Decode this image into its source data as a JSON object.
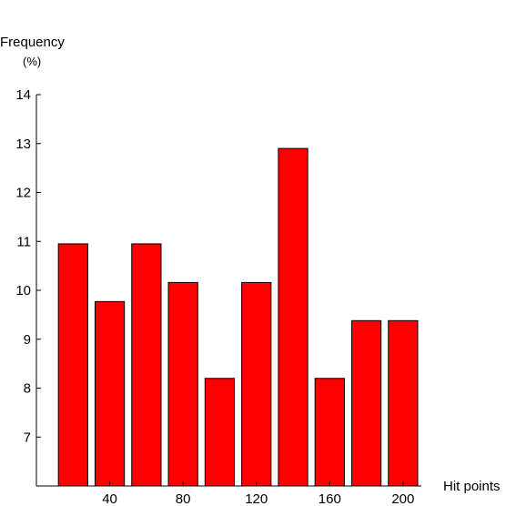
{
  "chart_data": {
    "type": "bar",
    "ylabel": "Frequency",
    "yunit": "(%)",
    "xlabel": "Hit points",
    "ylim": [
      6,
      14
    ],
    "yticks": [
      7,
      8,
      9,
      10,
      11,
      12,
      13,
      14
    ],
    "xlim": [
      0,
      210
    ],
    "xticks": [
      40,
      80,
      120,
      160,
      200
    ],
    "bar_width": 16,
    "bar_color": "#ff0000",
    "x": [
      20,
      40,
      60,
      80,
      100,
      120,
      140,
      160,
      180,
      200
    ],
    "values": [
      10.95,
      9.77,
      10.95,
      10.16,
      8.2,
      10.16,
      12.9,
      8.2,
      9.38,
      9.38
    ]
  }
}
